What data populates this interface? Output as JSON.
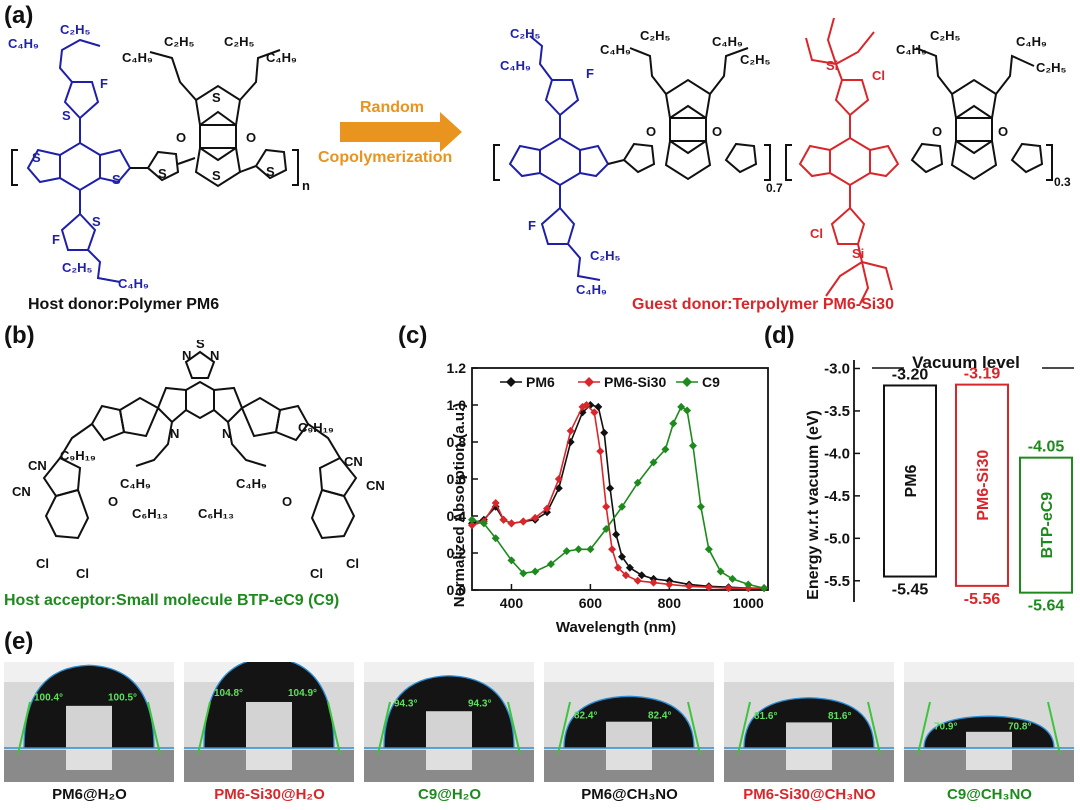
{
  "panels": {
    "a": "(a)",
    "b": "(b)",
    "c": "(c)",
    "d": "(d)",
    "e": "(e)"
  },
  "colors": {
    "blue": "#1f1fa8",
    "red": "#d9262b",
    "green": "#1e8a1e",
    "black": "#111111",
    "arrow": "#e8941e"
  },
  "panel_a": {
    "arrow_line1": "Random",
    "arrow_line2": "Copolymerization",
    "host_caption": "Host donor:Polymer PM6",
    "guest_caption": "Guest donor:Terpolymer PM6-Si30",
    "n": "n",
    "x07": "0.7",
    "x03": "0.3",
    "labels": {
      "c4h9": "C₄H₉",
      "c2h5": "C₂H₅",
      "f": "F",
      "cl": "Cl",
      "si": "Si",
      "s": "S",
      "o": "O"
    }
  },
  "panel_b": {
    "caption": "Host acceptor:Small molecule BTP-eC9 (C9)",
    "labels": {
      "c9h19": "C₉H₁₉",
      "c4h9": "C₄H₉",
      "c6h13": "C₆H₁₃",
      "cn": "CN",
      "cl": "Cl",
      "n": "N",
      "s": "S",
      "o": "O"
    }
  },
  "chart_data": {
    "type": "line",
    "xlabel": "Wavelength (nm)",
    "ylabel": "Normalized Absorption (a.u.)",
    "xlim": [
      300,
      1050
    ],
    "ylim": [
      0,
      1.2
    ],
    "xticks": [
      400,
      600,
      800,
      1000
    ],
    "yticks": [
      0.0,
      0.2,
      0.4,
      0.6,
      0.8,
      1.0,
      1.2
    ],
    "legend": [
      "PM6",
      "PM6-Si30",
      "C9"
    ],
    "series": [
      {
        "name": "PM6",
        "color": "#111111",
        "marker": "diamond",
        "x": [
          300,
          330,
          360,
          380,
          400,
          430,
          460,
          490,
          520,
          550,
          580,
          600,
          620,
          635,
          650,
          665,
          680,
          700,
          730,
          760,
          800,
          850,
          900,
          950,
          1000,
          1040
        ],
        "y": [
          0.36,
          0.38,
          0.45,
          0.38,
          0.36,
          0.37,
          0.38,
          0.42,
          0.55,
          0.8,
          0.96,
          1.0,
          0.99,
          0.85,
          0.55,
          0.3,
          0.18,
          0.12,
          0.08,
          0.06,
          0.05,
          0.03,
          0.02,
          0.015,
          0.01,
          0.01
        ]
      },
      {
        "name": "PM6-Si30",
        "color": "#d9262b",
        "marker": "diamond",
        "x": [
          300,
          330,
          360,
          380,
          400,
          430,
          460,
          490,
          520,
          550,
          580,
          590,
          610,
          625,
          640,
          655,
          670,
          690,
          720,
          760,
          800,
          850,
          900,
          950,
          1000,
          1040
        ],
        "y": [
          0.35,
          0.37,
          0.47,
          0.38,
          0.36,
          0.37,
          0.39,
          0.44,
          0.6,
          0.86,
          0.99,
          1.0,
          0.96,
          0.75,
          0.45,
          0.22,
          0.12,
          0.08,
          0.05,
          0.04,
          0.03,
          0.02,
          0.015,
          0.01,
          0.01,
          0.01
        ]
      },
      {
        "name": "C9",
        "color": "#1e8a1e",
        "marker": "diamond",
        "x": [
          300,
          330,
          360,
          400,
          430,
          460,
          500,
          540,
          570,
          600,
          640,
          680,
          720,
          760,
          790,
          810,
          830,
          845,
          860,
          880,
          900,
          930,
          960,
          1000,
          1040
        ],
        "y": [
          0.38,
          0.36,
          0.28,
          0.16,
          0.09,
          0.1,
          0.14,
          0.21,
          0.22,
          0.22,
          0.33,
          0.45,
          0.58,
          0.69,
          0.76,
          0.9,
          0.99,
          0.97,
          0.78,
          0.45,
          0.22,
          0.1,
          0.06,
          0.03,
          0.01
        ]
      }
    ]
  },
  "panel_d": {
    "title": "Vacuum level",
    "ylabel": "Energy w.r.t vacuum (eV)",
    "ylim": [
      -5.75,
      -2.9
    ],
    "yticks": [
      -3.0,
      -3.5,
      -4.0,
      -4.5,
      -5.0,
      -5.5
    ],
    "ytick_labels": [
      "-3.0",
      "-3.5",
      "-4.0",
      "-4.5",
      "-5.0",
      "-5.5"
    ],
    "levels": [
      {
        "name": "PM6",
        "lumo": -3.2,
        "homo": -5.45,
        "lumo_label": "-3.20",
        "homo_label": "-5.45",
        "color": "#111111"
      },
      {
        "name": "PM6-Si30",
        "lumo": -3.19,
        "homo": -5.56,
        "lumo_label": "-3.19",
        "homo_label": "-5.56",
        "color": "#d9262b"
      },
      {
        "name": "BTP-eC9",
        "lumo": -4.05,
        "homo": -5.64,
        "lumo_label": "-4.05",
        "homo_label": "-5.64",
        "color": "#1e8a1e"
      }
    ]
  },
  "panel_e": {
    "samples": [
      {
        "caption": "PM6@H₂O",
        "left": "100.4°",
        "right": "100.5°",
        "angle": 100.4,
        "color": "#111111"
      },
      {
        "caption": "PM6-Si30@H₂O",
        "left": "104.8°",
        "right": "104.9°",
        "angle": 104.8,
        "color": "#d9262b"
      },
      {
        "caption": "C9@H₂O",
        "left": "94.3°",
        "right": "94.3°",
        "angle": 94.3,
        "color": "#1e8a1e"
      },
      {
        "caption": "PM6@CH₃NO",
        "left": "82.4°",
        "right": "82.4°",
        "angle": 82.4,
        "color": "#111111"
      },
      {
        "caption": "PM6-Si30@CH₃NO",
        "left": "81.6°",
        "right": "81.6°",
        "angle": 81.6,
        "color": "#d9262b"
      },
      {
        "caption": "C9@CH₃NO",
        "left": "70.9°",
        "right": "70.8°",
        "angle": 70.9,
        "color": "#1e8a1e"
      }
    ]
  }
}
